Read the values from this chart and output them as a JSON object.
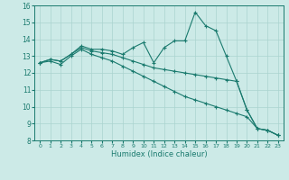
{
  "xlabel": "Humidex (Indice chaleur)",
  "bg_color": "#cceae7",
  "grid_color": "#aad4d0",
  "line_color": "#1a7a6e",
  "xlim": [
    -0.5,
    23.5
  ],
  "ylim": [
    8,
    16
  ],
  "xticks": [
    0,
    1,
    2,
    3,
    4,
    5,
    6,
    7,
    8,
    9,
    10,
    11,
    12,
    13,
    14,
    15,
    16,
    17,
    18,
    19,
    20,
    21,
    22,
    23
  ],
  "yticks": [
    8,
    9,
    10,
    11,
    12,
    13,
    14,
    15,
    16
  ],
  "line1": [
    12.6,
    12.8,
    12.7,
    13.1,
    13.6,
    13.4,
    13.4,
    13.3,
    13.1,
    13.5,
    13.8,
    12.6,
    13.5,
    13.9,
    13.9,
    15.6,
    14.8,
    14.5,
    13.0,
    11.5,
    9.8,
    8.7,
    8.6,
    8.3
  ],
  "line2": [
    12.6,
    12.8,
    12.7,
    13.1,
    13.5,
    13.3,
    13.2,
    13.1,
    12.9,
    12.7,
    12.5,
    12.3,
    12.2,
    12.1,
    12.0,
    11.9,
    11.8,
    11.7,
    11.6,
    11.5,
    9.8,
    8.7,
    8.6,
    8.3
  ],
  "line3": [
    12.6,
    12.7,
    12.5,
    13.0,
    13.4,
    13.1,
    12.9,
    12.7,
    12.4,
    12.1,
    11.8,
    11.5,
    11.2,
    10.9,
    10.6,
    10.4,
    10.2,
    10.0,
    9.8,
    9.6,
    9.4,
    8.7,
    8.6,
    8.3
  ]
}
